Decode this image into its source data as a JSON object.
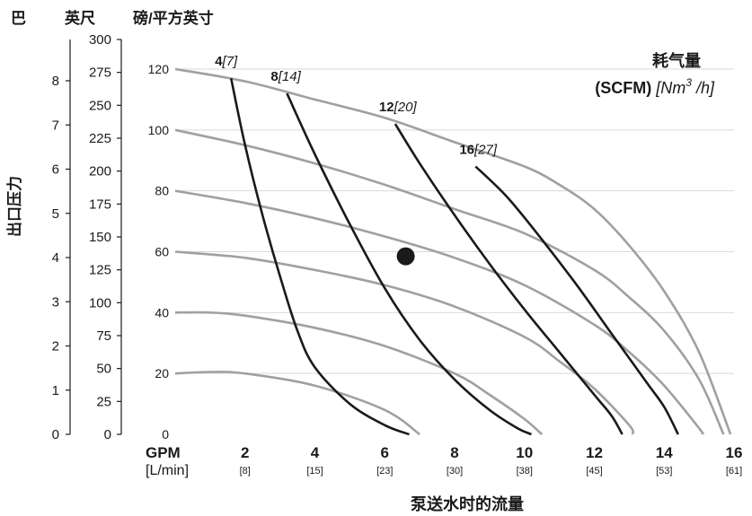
{
  "chart_data": {
    "type": "line",
    "header": {
      "bar": "巴",
      "psi": "英尺",
      "psi_unit": "磅/平方英寸"
    },
    "ylabel": "出口压力",
    "xlabel": "泵送水时的流量",
    "x_unit_primary": "GPM",
    "x_unit_secondary": "[L/min]",
    "xlim": [
      0,
      16
    ],
    "ylim": [
      0,
      130
    ],
    "psi_ticks": [
      "0",
      "20",
      "40",
      "60",
      "80",
      "100",
      "120"
    ],
    "feet_ticks": [
      "0",
      "25",
      "50",
      "75",
      "100",
      "125",
      "150",
      "175",
      "200",
      "225",
      "250",
      "275",
      "300"
    ],
    "bar_ticks": [
      "0",
      "1",
      "2",
      "3",
      "4",
      "5",
      "6",
      "7",
      "8"
    ],
    "x_ticks": [
      {
        "gpm": "2",
        "lpm": "[8]"
      },
      {
        "gpm": "4",
        "lpm": "[15]"
      },
      {
        "gpm": "6",
        "lpm": "[23]"
      },
      {
        "gpm": "8",
        "lpm": "[30]"
      },
      {
        "gpm": "10",
        "lpm": "[38]"
      },
      {
        "gpm": "12",
        "lpm": "[45]"
      },
      {
        "gpm": "14",
        "lpm": "[53]"
      },
      {
        "gpm": "16",
        "lpm": "[61]"
      }
    ],
    "legend": {
      "title": "耗气量",
      "unit_bold": "(SCFM)",
      "unit_italic_pre": "[Nm",
      "unit_italic_sup": "3",
      "unit_italic_post": " /h]"
    },
    "pressure_curves": [
      {
        "points": [
          [
            0,
            120
          ],
          [
            2,
            116
          ],
          [
            4,
            110
          ],
          [
            6,
            104
          ],
          [
            8,
            96
          ],
          [
            10,
            88
          ],
          [
            11,
            82
          ],
          [
            12,
            74
          ],
          [
            13,
            62
          ],
          [
            14,
            47
          ],
          [
            15,
            27
          ],
          [
            15.9,
            0
          ]
        ]
      },
      {
        "points": [
          [
            0,
            100
          ],
          [
            2,
            95
          ],
          [
            4,
            89
          ],
          [
            6,
            82
          ],
          [
            8,
            74
          ],
          [
            10,
            66
          ],
          [
            12,
            54
          ],
          [
            13,
            45
          ],
          [
            14,
            34
          ],
          [
            15,
            18
          ],
          [
            15.7,
            0
          ]
        ]
      },
      {
        "points": [
          [
            0,
            80
          ],
          [
            2,
            76
          ],
          [
            4,
            71
          ],
          [
            6,
            65
          ],
          [
            8,
            58
          ],
          [
            10,
            49
          ],
          [
            12,
            36
          ],
          [
            13,
            27
          ],
          [
            14,
            16
          ],
          [
            15,
            2
          ],
          [
            15.1,
            0
          ]
        ]
      },
      {
        "points": [
          [
            0,
            60
          ],
          [
            2,
            58
          ],
          [
            4,
            54
          ],
          [
            6,
            49
          ],
          [
            8,
            42
          ],
          [
            10,
            32
          ],
          [
            11,
            24
          ],
          [
            12,
            15
          ],
          [
            13,
            3
          ],
          [
            13.1,
            0
          ]
        ]
      },
      {
        "points": [
          [
            0,
            40
          ],
          [
            1,
            40
          ],
          [
            2,
            39
          ],
          [
            4,
            35
          ],
          [
            6,
            29
          ],
          [
            8,
            20
          ],
          [
            9,
            13
          ],
          [
            10,
            5
          ],
          [
            10.5,
            0
          ]
        ]
      },
      {
        "points": [
          [
            0,
            20
          ],
          [
            1,
            20.5
          ],
          [
            2,
            20
          ],
          [
            4,
            16
          ],
          [
            6,
            8
          ],
          [
            7,
            0
          ]
        ]
      }
    ],
    "air_curves": [
      {
        "label": "4",
        "label_italic": "[7]",
        "points": [
          [
            1.6,
            117
          ],
          [
            2,
            95
          ],
          [
            2.5,
            72
          ],
          [
            3,
            52
          ],
          [
            3.5,
            34
          ],
          [
            4,
            22
          ],
          [
            5,
            10
          ],
          [
            6,
            3
          ],
          [
            6.7,
            0
          ]
        ]
      },
      {
        "label": "8",
        "label_italic": "[14]",
        "points": [
          [
            3.2,
            112
          ],
          [
            4,
            92
          ],
          [
            5,
            69
          ],
          [
            6,
            48
          ],
          [
            7,
            31
          ],
          [
            8,
            18
          ],
          [
            9,
            8
          ],
          [
            9.8,
            2
          ],
          [
            10.2,
            0
          ]
        ]
      },
      {
        "label": "12",
        "label_italic": "[20]",
        "points": [
          [
            6.3,
            102
          ],
          [
            7,
            89
          ],
          [
            8,
            72
          ],
          [
            9,
            56
          ],
          [
            10,
            41
          ],
          [
            11,
            27
          ],
          [
            12,
            13
          ],
          [
            12.5,
            6
          ],
          [
            12.8,
            0
          ]
        ]
      },
      {
        "label": "16",
        "label_italic": "[27]",
        "points": [
          [
            8.6,
            88
          ],
          [
            9.5,
            78
          ],
          [
            10.5,
            64
          ],
          [
            11.5,
            49
          ],
          [
            12.5,
            33
          ],
          [
            13.5,
            17
          ],
          [
            14,
            9
          ],
          [
            14.4,
            0
          ]
        ]
      }
    ],
    "operating_point": {
      "x": 6.6,
      "y": 58.5
    }
  }
}
